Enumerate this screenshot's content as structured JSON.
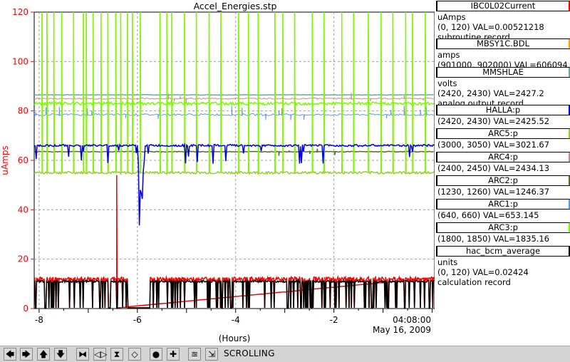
{
  "chart_data": {
    "type": "line",
    "title": "Accel_Energies.stp",
    "xlabel": "(Hours)",
    "ylabel": "uAmps",
    "xlim": [
      -8.1,
      0.05
    ],
    "ylim": [
      0,
      120
    ],
    "x_ticks": [
      -8,
      -6,
      -4,
      -2
    ],
    "x_tick_labels": [
      "-8",
      "-6",
      "-4",
      "-2"
    ],
    "y_ticks": [
      0,
      20,
      40,
      60,
      80,
      100,
      120
    ],
    "time_label": "04:08:00",
    "date_label": "May 16, 2009",
    "grid": true,
    "legend_position": "right",
    "series": [
      {
        "name": "IBC0L02Current",
        "units": "uAmps",
        "range": "(0, 120)",
        "val_text": "VAL=0.00521218",
        "record": "subroutine record",
        "color": "#ff0000"
      },
      {
        "name": "MBSY1C.BDL",
        "units": "amps",
        "range": "(901000, 902000)",
        "val_text": "VAL=606094",
        "color": "#ffa500"
      },
      {
        "name": "MMSHLAE",
        "units": "volts",
        "range": "(2420, 2430)",
        "val_text": "VAL=2427.2",
        "record": "analog output record",
        "color": "#6fa7a7"
      },
      {
        "name": "HALLA:p",
        "range": "(2420, 2430)",
        "val_text": "VAL=2425.52",
        "color": "#0000e0"
      },
      {
        "name": "ARC5:p",
        "range": "(3000, 3050)",
        "val_text": "VAL=3021.67",
        "color": "#9acd32"
      },
      {
        "name": "ARC4:p",
        "range": "(2400, 2450)",
        "val_text": "VAL=2434.13",
        "color": "#bc8f8f"
      },
      {
        "name": "ARC2:p",
        "range": "(1230, 1260)",
        "val_text": "VAL=1246.37",
        "color": "#556b2f"
      },
      {
        "name": "ARC1:p",
        "range": "(640, 660)",
        "val_text": "VAL=653.145",
        "color": "#6495ed"
      },
      {
        "name": "ARC3:p",
        "range": "(1800, 1850)",
        "val_text": "VAL=1835.16",
        "color": "#7cfc00"
      },
      {
        "name": "hac_bcm_average",
        "units": "units",
        "range": "(0, 120)",
        "val_text": "VAL=0.02424",
        "record": "calculation record",
        "color": "#000000"
      }
    ],
    "levels_uAmps": {
      "IBC0L02Current": 12,
      "MMSHLAE": 86.5,
      "HALLA:p": 66,
      "ARC5:p": 55,
      "ARC4:p": 85,
      "ARC2:p": 63.5,
      "ARC1:p": 78.5,
      "ARC3:p": 83,
      "hac_bcm_average": 11
    }
  },
  "toolbar": {
    "buttons": [
      {
        "name": "scroll-left-button",
        "glyph": "🡄"
      },
      {
        "name": "scroll-right-button",
        "glyph": "🡆"
      },
      {
        "name": "scroll-up-button",
        "glyph": "🡅"
      },
      {
        "name": "scroll-down-button",
        "glyph": "🡇"
      },
      {
        "name": "zoom-in-x-button",
        "glyph": "⧓"
      },
      {
        "name": "zoom-out-x-button",
        "glyph": "◁▷"
      },
      {
        "name": "zoom-in-y-button",
        "glyph": "⧗"
      },
      {
        "name": "zoom-out-y-button",
        "glyph": "◇"
      },
      {
        "name": "record-button",
        "glyph": "●"
      },
      {
        "name": "add-button",
        "glyph": "✚"
      },
      {
        "name": "fit-button",
        "glyph": "≊"
      },
      {
        "name": "scroll-toggle-button",
        "glyph": "⇲"
      }
    ],
    "status": "SCROLLING"
  }
}
